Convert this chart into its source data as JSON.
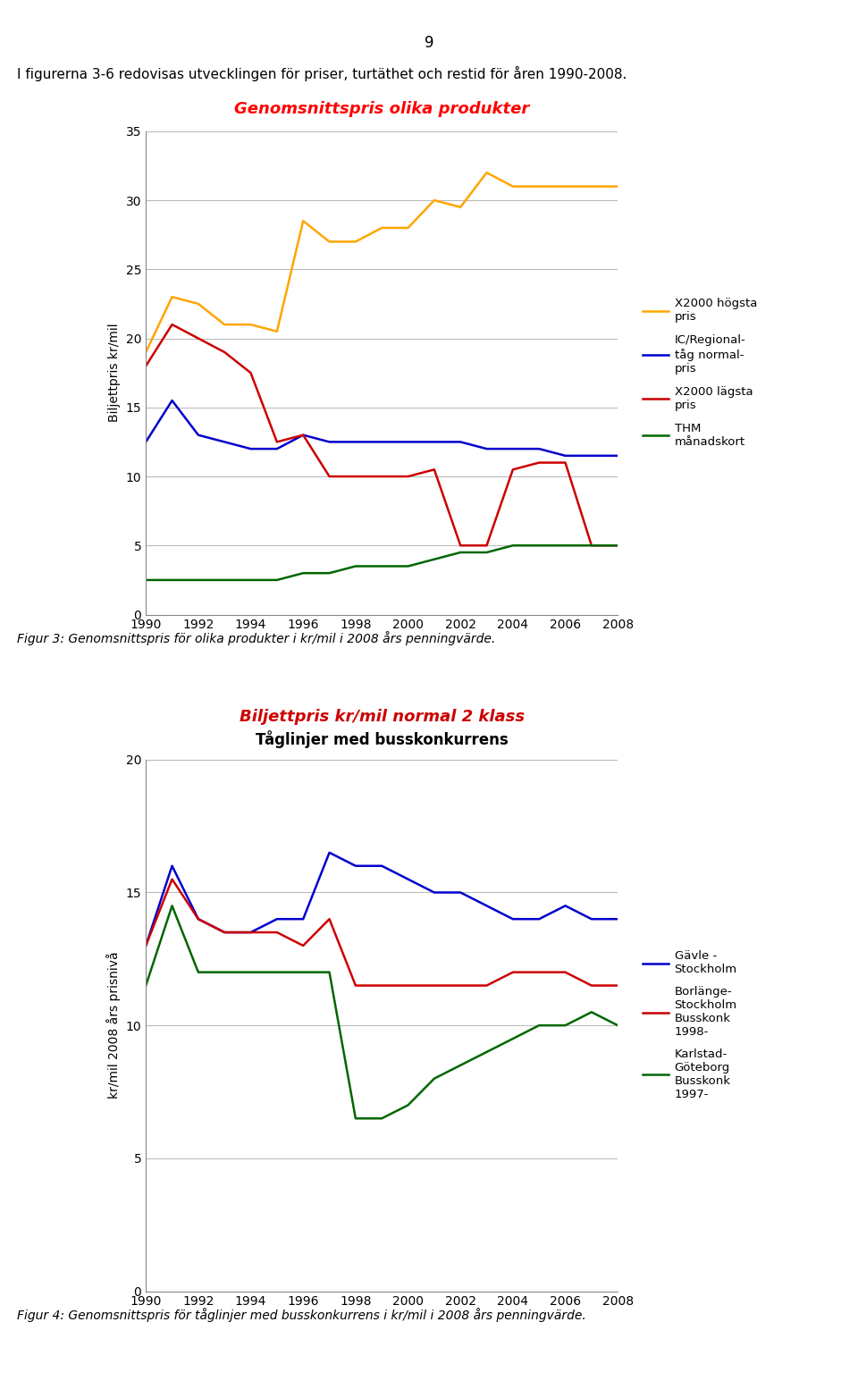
{
  "page_number": "9",
  "header_text": "I figurerna 3-6 redovisas utvecklingen för priser, turtäthet och restid för åren 1990-2008.",
  "chart1": {
    "title": "Genomsnittspris olika produkter",
    "title_color": "#FF0000",
    "ylabel": "Biljettpris kr/mil",
    "ylim": [
      0,
      35
    ],
    "yticks": [
      0,
      5,
      10,
      15,
      20,
      25,
      30,
      35
    ],
    "years": [
      1990,
      1991,
      1992,
      1993,
      1994,
      1995,
      1996,
      1997,
      1998,
      1999,
      2000,
      2001,
      2002,
      2003,
      2004,
      2005,
      2006,
      2007,
      2008
    ],
    "x2000_hogsta": [
      19,
      23,
      22.5,
      21,
      21,
      20.5,
      28.5,
      27,
      27,
      28,
      28,
      30,
      29.5,
      32,
      31,
      31,
      31,
      31,
      31
    ],
    "ic_regional": [
      12.5,
      15.5,
      13,
      12.5,
      12,
      12,
      13,
      12.5,
      12.5,
      12.5,
      12.5,
      12.5,
      12.5,
      12,
      12,
      12,
      11.5,
      11.5,
      11.5
    ],
    "x2000_lagsta": [
      18,
      21,
      20,
      19,
      17.5,
      12.5,
      13,
      10,
      10,
      10,
      10,
      10.5,
      5,
      5,
      10.5,
      11,
      11,
      5,
      5
    ],
    "thm_manadskort": [
      2.5,
      2.5,
      2.5,
      2.5,
      2.5,
      2.5,
      3,
      3,
      3.5,
      3.5,
      3.5,
      4,
      4.5,
      4.5,
      5,
      5,
      5,
      5,
      5
    ],
    "line_colors": {
      "x2000_hogsta": "#FFA500",
      "ic_regional": "#0000CC",
      "x2000_lagsta": "#CC0000",
      "thm_manadskort": "#006600"
    },
    "legend_labels": {
      "x2000_hogsta": "X2000 högsta\npris",
      "ic_regional": "IC/Regional-\ntåg normal-\npris",
      "x2000_lagsta": "X2000 lägsta\npris",
      "thm_manadskort": "THM\nmånadskort"
    },
    "caption": "Figur 3: Genomsnittspris för olika produkter i kr/mil i 2008 års penningvärde."
  },
  "chart2": {
    "title_line1": "Biljettpris kr/mil normal 2 klass",
    "title_line1_color": "#CC0000",
    "title_line2": "Tåglinjer med busskonkurrens",
    "title_line2_color": "#000000",
    "ylabel": "kr/mil 2008 års prisnivå",
    "ylim": [
      0,
      20
    ],
    "yticks": [
      0,
      5,
      10,
      15,
      20
    ],
    "years": [
      1990,
      1991,
      1992,
      1993,
      1994,
      1995,
      1996,
      1997,
      1998,
      1999,
      2000,
      2001,
      2002,
      2003,
      2004,
      2005,
      2006,
      2007,
      2008
    ],
    "gavle_stockholm": [
      13,
      16,
      14,
      13.5,
      13.5,
      14,
      14,
      16.5,
      16,
      16,
      15.5,
      15,
      15,
      14.5,
      14,
      14,
      14.5,
      14,
      14
    ],
    "borlange_stockholm": [
      13,
      15.5,
      14,
      13.5,
      13.5,
      13.5,
      13,
      14,
      11.5,
      11.5,
      11.5,
      11.5,
      11.5,
      11.5,
      12,
      12,
      12,
      11.5,
      11.5
    ],
    "karlstad_goteborg": [
      11.5,
      14.5,
      12,
      12,
      12,
      12,
      12,
      12,
      6.5,
      6.5,
      7,
      8,
      8.5,
      9,
      9.5,
      10,
      10,
      10.5,
      10
    ],
    "line_colors": {
      "gavle_stockholm": "#0000CC",
      "borlange_stockholm": "#CC0000",
      "karlstad_goteborg": "#006600"
    },
    "legend_labels": {
      "gavle_stockholm": "Gävle -\nStockholm",
      "borlange_stockholm": "Borlänge-\nStockholm\nBusskonk\n1998-",
      "karlstad_goteborg": "Karlstad-\nGöteborg\nBusskonk\n1997-"
    },
    "caption": "Figur 4: Genomsnittspris för tåglinjer med busskonkurrens i kr/mil i 2008 års penningvärde."
  }
}
